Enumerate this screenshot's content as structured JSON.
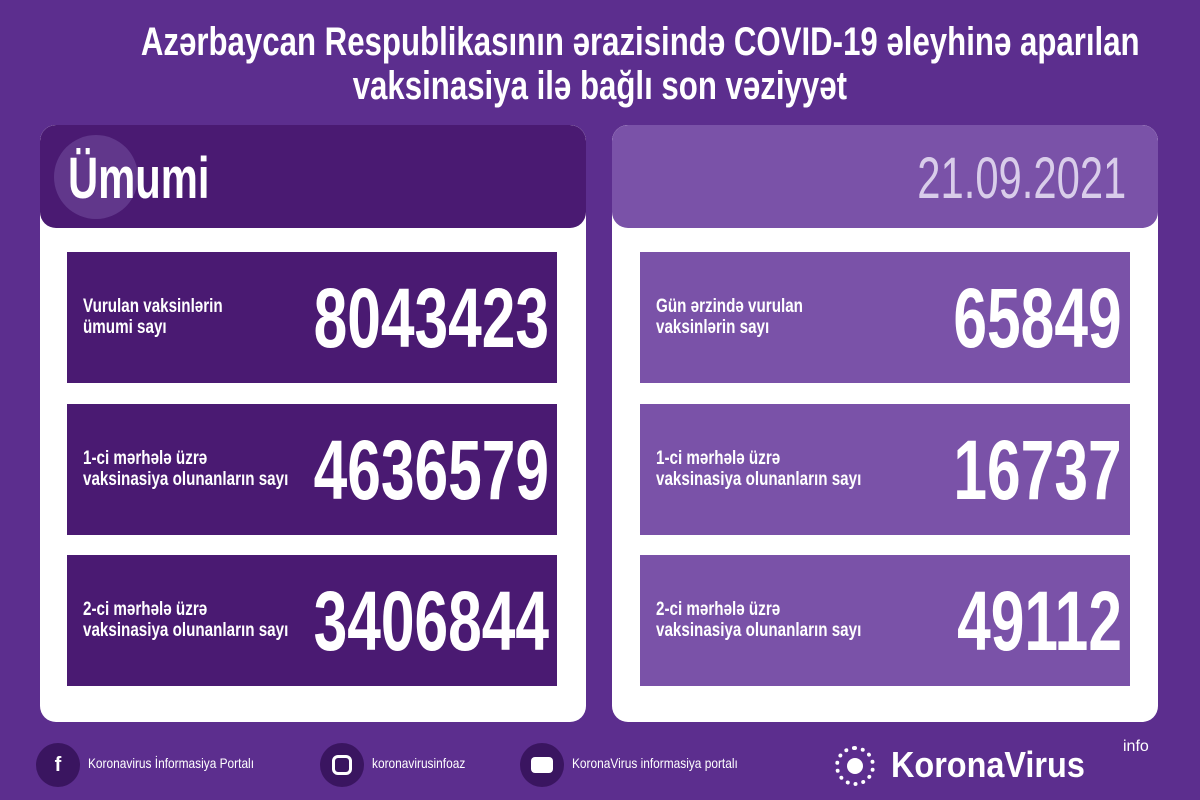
{
  "title": {
    "line1": "Azərbaycan Respublikasının ərazisində COVID-19 əleyhinə aparılan",
    "line2": "vaksinasiya ilə bağlı son vəziyyət"
  },
  "left": {
    "header": "Ümumi",
    "rows": [
      {
        "label1": "Vurulan vaksinlərin",
        "label2": "ümumi sayı",
        "value": "8043423"
      },
      {
        "label1": "1-ci mərhələ üzrə",
        "label2": "vaksinasiya olunanların sayı",
        "value": "4636579"
      },
      {
        "label1": "2-ci mərhələ üzrə",
        "label2": "vaksinasiya olunanların sayı",
        "value": "3406844"
      }
    ]
  },
  "right": {
    "header": "21.09.2021",
    "rows": [
      {
        "label1": "Gün ərzində vurulan",
        "label2": "vaksinlərin sayı",
        "value": "65849"
      },
      {
        "label1": "1-ci mərhələ üzrə",
        "label2": "vaksinasiya olunanların sayı",
        "value": "16737"
      },
      {
        "label1": "2-ci mərhələ üzrə",
        "label2": "vaksinasiya olunanların sayı",
        "value": "49112"
      }
    ]
  },
  "footer": {
    "facebook": "Koronavirus İnformasiya Portalı",
    "instagram": "koronavirusinfoaz",
    "youtube": "KoronaVirus informasiya portalı",
    "brand": "KoronaVirus",
    "brand_sup": "info"
  },
  "colors": {
    "background": "#5c2e8e",
    "left_box": "#4a1a72",
    "right_box": "#7a52a8"
  }
}
